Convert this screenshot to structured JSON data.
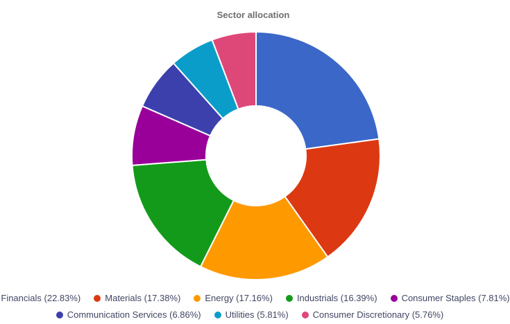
{
  "chart_data": {
    "type": "pie",
    "subtype": "donut",
    "title": "Sector allocation",
    "legend_position": "bottom",
    "legend_rows": [
      5,
      3
    ],
    "pie_hole_ratio": 0.4,
    "series": [
      {
        "name": "Financials",
        "value": 22.83,
        "label": "Financials (22.83%)",
        "color": "#3A67C8"
      },
      {
        "name": "Materials",
        "value": 17.38,
        "label": "Materials (17.38%)",
        "color": "#DC3912"
      },
      {
        "name": "Energy",
        "value": 17.16,
        "label": "Energy (17.16%)",
        "color": "#FF9900"
      },
      {
        "name": "Industrials",
        "value": 16.39,
        "label": "Industrials (16.39%)",
        "color": "#149A1B"
      },
      {
        "name": "Consumer Staples",
        "value": 7.81,
        "label": "Consumer Staples (7.81%)",
        "color": "#990099"
      },
      {
        "name": "Communication Services",
        "value": 6.86,
        "label": "Communication Services (6.86%)",
        "color": "#3C40AD"
      },
      {
        "name": "Utilities",
        "value": 5.81,
        "label": "Utilities (5.81%)",
        "color": "#0A9DC9"
      },
      {
        "name": "Consumer Discretionary",
        "value": 5.76,
        "label": "Consumer Discretionary (5.76%)",
        "color": "#DE4879"
      }
    ],
    "colors": {
      "title": "#6E6E6E",
      "legend_text": "#404663",
      "background": "#FFFFFF",
      "slice_border": "#FFFFFF"
    }
  }
}
